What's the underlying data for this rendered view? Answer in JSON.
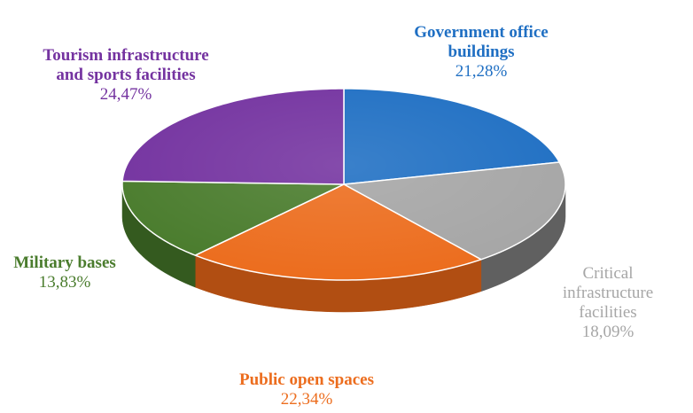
{
  "chart_data": {
    "type": "pie",
    "title": "",
    "slices": [
      {
        "label_lines": [
          "Government office",
          "buildings"
        ],
        "value": 21.28,
        "value_text": "21,28%",
        "color": "#1f6fc3",
        "side": "#164f8c",
        "label_color": "#1f6fc3",
        "bold": true
      },
      {
        "label_lines": [
          "Critical",
          "infrastructure",
          "facilities"
        ],
        "value": 18.09,
        "value_text": "18,09%",
        "color": "#a6a6a6",
        "side": "#606060",
        "label_color": "#a6a6a6",
        "bold": false
      },
      {
        "label_lines": [
          "Public open spaces"
        ],
        "value": 22.34,
        "value_text": "22,34%",
        "color": "#ec6d1e",
        "side": "#b14e12",
        "label_color": "#ec6d1e",
        "bold": true
      },
      {
        "label_lines": [
          "Military bases"
        ],
        "value": 13.83,
        "value_text": "13,83%",
        "color": "#4a7c2d",
        "side": "#345a1f",
        "label_color": "#4a7c2d",
        "bold": true
      },
      {
        "label_lines": [
          "Tourism infrastructure",
          "and sports facilities"
        ],
        "value": 24.47,
        "value_text": "24,47%",
        "color": "#7433a0",
        "side": "#552578",
        "label_color": "#7433a0",
        "bold": true
      }
    ],
    "style": "3d-pie",
    "legend": "none"
  }
}
